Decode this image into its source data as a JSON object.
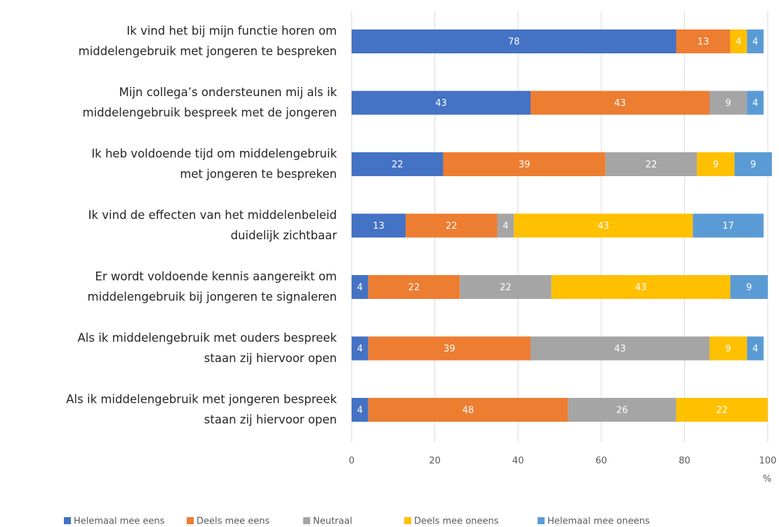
{
  "chart_data": {
    "type": "stacked-bar-horizontal",
    "categories": [
      [
        "Ik vind het bij mijn functie horen om",
        "middelengebruik met jongeren te bespreken"
      ],
      [
        "Mijn collega’s ondersteunen mij als ik",
        "middelengebruik bespreek met de jongeren"
      ],
      [
        "Ik heb voldoende tijd om middelengebruik",
        "met jongeren te bespreken"
      ],
      [
        "Ik vind de effecten van het middelenbeleid",
        "duidelijk zichtbaar"
      ],
      [
        "Er wordt voldoende kennis aangereikt om",
        "middelengebruik bij jongeren te signaleren"
      ],
      [
        "Als ik middelengebruik met ouders bespreek",
        "staan zij hiervoor open"
      ],
      [
        "Als ik middelengebruik met jongeren bespreek",
        "staan zij hiervoor open"
      ]
    ],
    "series": [
      {
        "name": "Helemaal mee eens",
        "color": "#4472c4",
        "values": [
          78,
          43,
          22,
          13,
          4,
          4,
          4
        ]
      },
      {
        "name": "Deels mee eens",
        "color": "#ed7d31",
        "values": [
          13,
          43,
          39,
          22,
          22,
          39,
          48
        ]
      },
      {
        "name": "Neutraal",
        "color": "#a5a5a5",
        "values": [
          null,
          9,
          22,
          4,
          22,
          43,
          26
        ]
      },
      {
        "name": "Deels mee oneens",
        "color": "#ffc000",
        "values": [
          4,
          null,
          9,
          43,
          43,
          9,
          22
        ]
      },
      {
        "name": "Helemaal mee oneens",
        "color": "#5b9bd5",
        "values": [
          4,
          4,
          9,
          17,
          9,
          4,
          null
        ]
      }
    ],
    "xlim": [
      0,
      100
    ],
    "xticks": [
      0,
      20,
      40,
      60,
      80,
      100
    ],
    "x_label": "%",
    "grid": true,
    "legend": "bottom"
  }
}
